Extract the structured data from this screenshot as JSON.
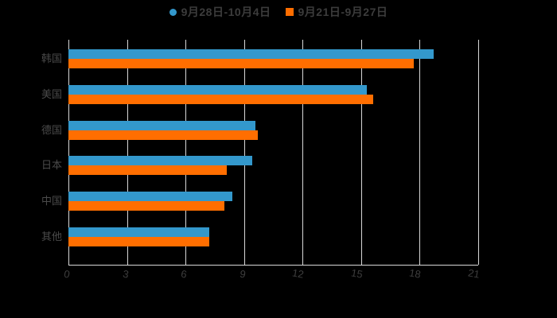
{
  "background": "#000000",
  "colors": {
    "series_blue": "#3398cc",
    "series_orange": "#ff6e00",
    "grid_line": "#d8d8d8",
    "legend_text": "#3c3c3c",
    "category_text": "#4a4a4a",
    "tick_text": "#3d3d3d"
  },
  "legend": {
    "items": [
      {
        "label": "9月28日-10月4日",
        "color": "#3398cc",
        "marker": "circle"
      },
      {
        "label": "9月21日-9月27日",
        "color": "#ff6e00",
        "marker": "square"
      }
    ]
  },
  "chart_data": {
    "type": "bar",
    "orientation": "horizontal",
    "title": "",
    "xlabel": "",
    "ylabel": "",
    "categories": [
      "韩国",
      "美国",
      "德国",
      "日本",
      "中国",
      "其他"
    ],
    "series": [
      {
        "name": "9月28日-10月4日",
        "color": "#3398cc",
        "values": [
          18.7,
          15.3,
          9.6,
          9.4,
          8.4,
          7.2
        ]
      },
      {
        "name": "9月21日-9月27日",
        "color": "#ff6e00",
        "values": [
          17.7,
          15.6,
          9.7,
          8.1,
          8.0,
          7.2
        ]
      }
    ],
    "x_ticks": [
      0,
      3,
      6,
      9,
      12,
      15,
      18,
      21
    ],
    "xlim": [
      0,
      21
    ],
    "grid": true,
    "legend_position": "top-center"
  }
}
